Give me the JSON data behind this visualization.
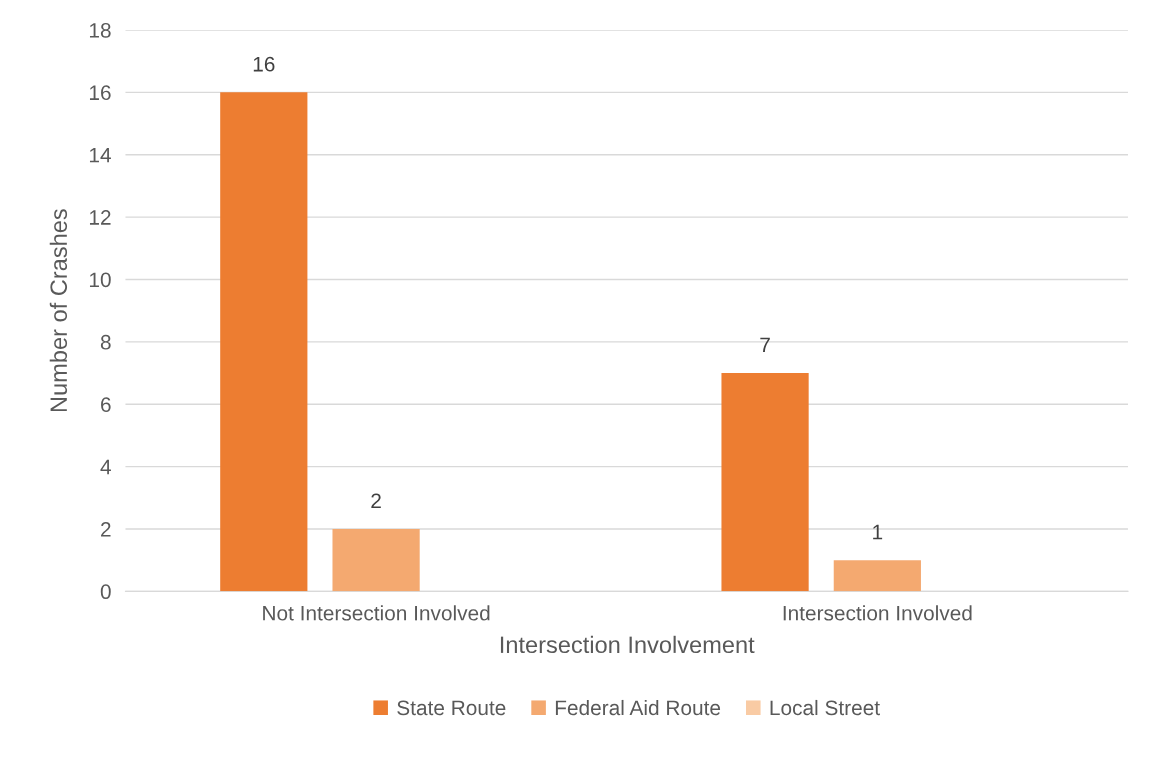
{
  "chart_data": {
    "type": "bar",
    "xlabel": "Intersection Involvement",
    "ylabel": "Number of Crashes",
    "categories": [
      "Not Intersection Involved",
      "Intersection Involved"
    ],
    "series": [
      {
        "name": "State Route",
        "color": "#ed7d31",
        "values": [
          16,
          7
        ]
      },
      {
        "name": "Federal Aid Route",
        "color": "#f4a970",
        "values": [
          2,
          1
        ]
      },
      {
        "name": "Local Street",
        "color": "#f9cba4",
        "values": [
          null,
          null
        ]
      }
    ],
    "ylim": [
      0,
      18
    ],
    "yticks": [
      0,
      2,
      4,
      6,
      8,
      10,
      12,
      14,
      16,
      18
    ],
    "grid": "y",
    "legend": "bottom",
    "data_labels": true
  }
}
